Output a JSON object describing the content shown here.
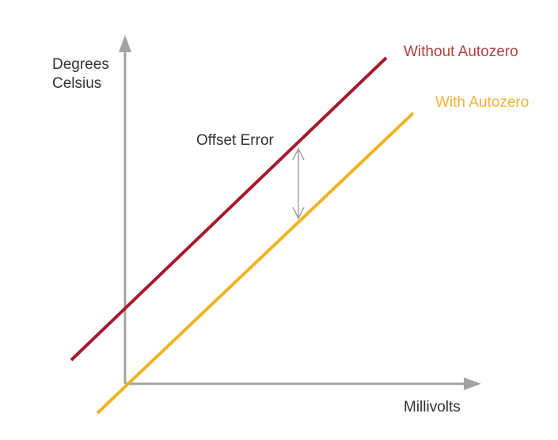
{
  "y_axis_label": [
    "Degrees",
    "Celsius"
  ],
  "x_axis_label": "Millivolts",
  "annotation": "Offset Error",
  "legend": {
    "without": "Without Autozero",
    "with": "With Autozero"
  }
}
